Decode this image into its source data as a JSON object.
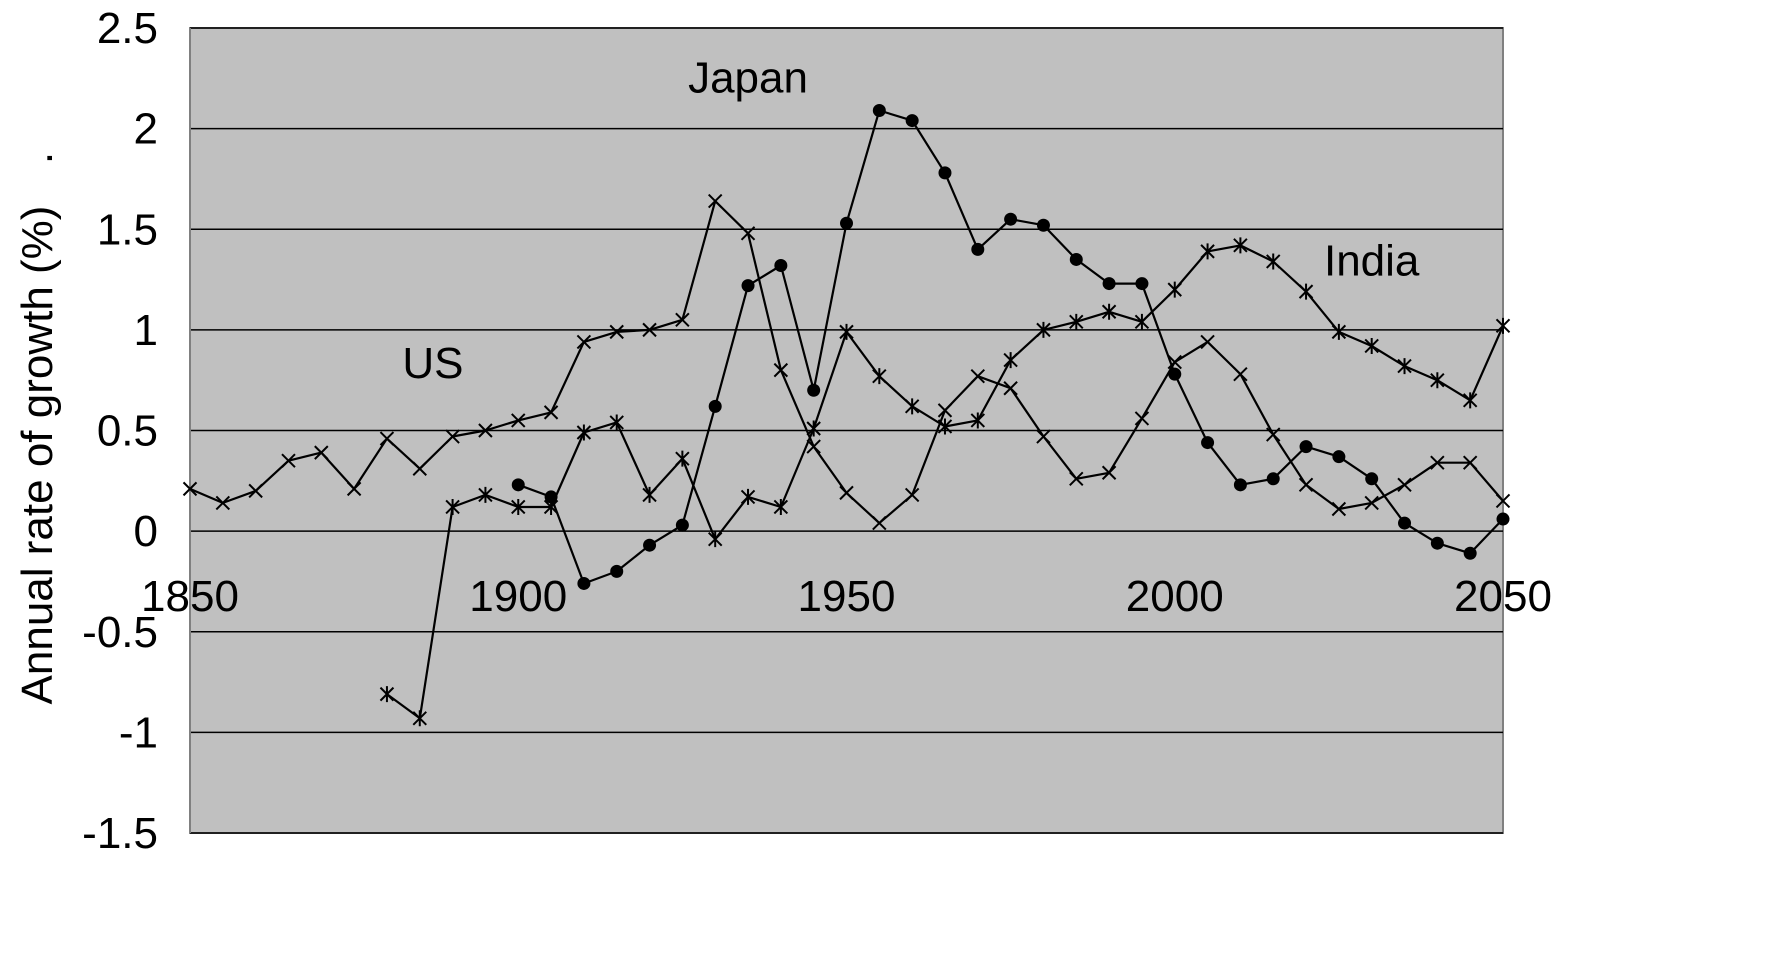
{
  "chart_data": {
    "type": "line",
    "ylabel": "Annual rate of growth (%)",
    "ylabel_suffix": ".",
    "xlim": [
      1850,
      2050
    ],
    "ylim": [
      -1.5,
      2.5
    ],
    "x_ticks": [
      "1850",
      "1900",
      "1950",
      "2000",
      "2050"
    ],
    "y_ticks": [
      "2.5",
      "2",
      "1.5",
      "1",
      "0.5",
      "0",
      "-0.5",
      "-1",
      "-1.5"
    ],
    "grid": "horizontal",
    "plot_background": "#c0c0c0",
    "line_color": "#000000",
    "annotations": [
      {
        "text": "Japan",
        "x": 1935,
        "y": 2.18
      },
      {
        "text": "US",
        "x": 1887,
        "y": 0.76
      },
      {
        "text": "India",
        "x": 2030,
        "y": 1.27
      }
    ],
    "series": [
      {
        "marker": "x",
        "x": [
          1850,
          1855,
          1860,
          1865,
          1870,
          1875,
          1880,
          1885,
          1890,
          1895,
          1900,
          1905,
          1910,
          1915,
          1920,
          1925,
          1930,
          1935,
          1940,
          1945,
          1950,
          1955,
          1960,
          1965,
          1970,
          1975,
          1980,
          1985,
          1990,
          1995,
          2000,
          2005,
          2010,
          2015,
          2020,
          2025,
          2030,
          2035,
          2040,
          2045,
          2050
        ],
        "values": [
          0.21,
          0.14,
          0.2,
          0.35,
          0.39,
          0.21,
          0.46,
          0.31,
          0.47,
          0.5,
          0.55,
          0.59,
          0.94,
          0.99,
          1.0,
          1.05,
          1.64,
          1.48,
          0.8,
          0.42,
          0.19,
          0.04,
          0.18,
          0.6,
          0.77,
          0.71,
          0.47,
          0.26,
          0.29,
          0.56,
          0.84,
          0.94,
          0.78,
          0.48,
          0.23,
          0.11,
          0.14,
          0.23,
          0.34,
          0.34,
          0.15
        ]
      },
      {
        "marker": "circle",
        "x": [
          1900,
          1905,
          1910,
          1915,
          1920,
          1925,
          1930,
          1935,
          1940,
          1945,
          1950,
          1955,
          1960,
          1965,
          1970,
          1975,
          1980,
          1985,
          1990,
          1995,
          2000,
          2005,
          2010,
          2015,
          2020,
          2025,
          2030,
          2035,
          2040,
          2045,
          2050
        ],
        "values": [
          0.23,
          0.17,
          -0.26,
          -0.2,
          -0.07,
          0.03,
          0.62,
          1.22,
          1.32,
          0.7,
          1.53,
          2.09,
          2.04,
          1.78,
          1.4,
          1.55,
          1.52,
          1.35,
          1.23,
          1.23,
          0.78,
          0.44,
          0.23,
          0.26,
          0.42,
          0.37,
          0.26,
          0.04,
          -0.06,
          -0.11,
          0.06
        ]
      },
      {
        "marker": "star",
        "x": [
          1880,
          1885,
          1890,
          1895,
          1900,
          1905,
          1910,
          1915,
          1920,
          1925,
          1930,
          1935,
          1940,
          1945,
          1950,
          1955,
          1960,
          1965,
          1970,
          1975,
          1980,
          1985,
          1990,
          1995,
          2000,
          2005,
          2010,
          2015,
          2020,
          2025,
          2030,
          2035,
          2040,
          2045,
          2050
        ],
        "values": [
          -0.81,
          -0.93,
          0.12,
          0.18,
          0.12,
          0.12,
          0.49,
          0.54,
          0.18,
          0.36,
          -0.04,
          0.17,
          0.12,
          0.51,
          0.99,
          0.77,
          0.62,
          0.52,
          0.55,
          0.85,
          1.0,
          1.04,
          1.09,
          1.04,
          1.2,
          1.39,
          1.42,
          1.34,
          1.19,
          0.99,
          0.92,
          0.82,
          0.75,
          0.65,
          1.02
        ]
      }
    ]
  }
}
